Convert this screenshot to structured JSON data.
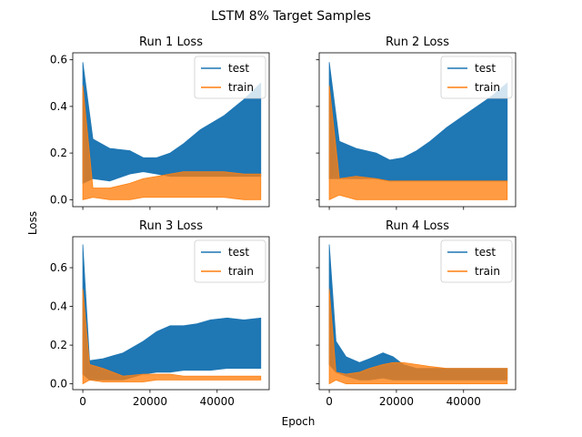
{
  "figure": {
    "title": "LSTM 8% Target Samples",
    "xlabel": "Epoch",
    "ylabel": "Loss"
  },
  "colors": {
    "test": "#1f77b4",
    "train": "#ff7f0e",
    "overlap": "#c98a4e"
  },
  "chart_data": [
    {
      "type": "line",
      "title": "Run 1 Loss",
      "xlim": [
        -3000,
        55500
      ],
      "ylim": [
        -0.03,
        0.63
      ],
      "xticks": [
        0,
        20000,
        40000
      ],
      "yticks": [
        0.0,
        0.2,
        0.4,
        0.6
      ],
      "show_xtick_labels": false,
      "show_ytick_labels": true,
      "legend": [
        "test",
        "train"
      ],
      "series": [
        {
          "name": "test",
          "x": [
            0,
            3000,
            8000,
            14000,
            18000,
            22000,
            26000,
            30000,
            35000,
            42000,
            48000,
            53000
          ],
          "upper": [
            0.59,
            0.26,
            0.22,
            0.21,
            0.18,
            0.18,
            0.2,
            0.24,
            0.3,
            0.36,
            0.43,
            0.5
          ],
          "lower": [
            0.07,
            0.09,
            0.08,
            0.11,
            0.12,
            0.11,
            0.1,
            0.1,
            0.1,
            0.1,
            0.1,
            0.1
          ]
        },
        {
          "name": "train",
          "x": [
            0,
            3000,
            8000,
            14000,
            18000,
            22000,
            26000,
            30000,
            35000,
            42000,
            48000,
            53000
          ],
          "upper": [
            0.49,
            0.05,
            0.05,
            0.07,
            0.09,
            0.1,
            0.11,
            0.12,
            0.12,
            0.12,
            0.11,
            0.11
          ],
          "lower": [
            0.0,
            0.01,
            0.0,
            0.0,
            0.01,
            0.01,
            0.01,
            0.01,
            0.01,
            0.01,
            0.0,
            0.0
          ]
        }
      ]
    },
    {
      "type": "line",
      "title": "Run 2 Loss",
      "xlim": [
        -3000,
        55500
      ],
      "ylim": [
        -0.03,
        0.63
      ],
      "xticks": [
        0,
        20000,
        40000
      ],
      "yticks": [
        0.0,
        0.2,
        0.4,
        0.6
      ],
      "show_xtick_labels": false,
      "show_ytick_labels": false,
      "legend": [
        "test",
        "train"
      ],
      "series": [
        {
          "name": "test",
          "x": [
            0,
            3000,
            8000,
            14000,
            18000,
            22000,
            26000,
            30000,
            35000,
            42000,
            48000,
            53000
          ],
          "upper": [
            0.59,
            0.25,
            0.22,
            0.2,
            0.17,
            0.18,
            0.21,
            0.25,
            0.31,
            0.38,
            0.44,
            0.5
          ],
          "lower": [
            0.09,
            0.09,
            0.09,
            0.09,
            0.08,
            0.08,
            0.08,
            0.08,
            0.08,
            0.08,
            0.08,
            0.08
          ]
        },
        {
          "name": "train",
          "x": [
            0,
            3000,
            8000,
            14000,
            18000,
            22000,
            26000,
            30000,
            35000,
            42000,
            48000,
            53000
          ],
          "upper": [
            0.49,
            0.09,
            0.1,
            0.09,
            0.08,
            0.08,
            0.08,
            0.08,
            0.08,
            0.08,
            0.08,
            0.08
          ],
          "lower": [
            0.0,
            0.02,
            0.0,
            0.0,
            0.0,
            0.0,
            0.0,
            0.0,
            0.0,
            0.0,
            0.0,
            0.0
          ]
        }
      ]
    },
    {
      "type": "line",
      "title": "Run 3 Loss",
      "xlim": [
        -3000,
        55500
      ],
      "ylim": [
        -0.03,
        0.76
      ],
      "xticks": [
        0,
        20000,
        40000
      ],
      "yticks": [
        0.0,
        0.2,
        0.4,
        0.6
      ],
      "show_xtick_labels": true,
      "show_ytick_labels": true,
      "legend": [
        "test",
        "train"
      ],
      "series": [
        {
          "name": "test",
          "x": [
            0,
            2000,
            6000,
            12000,
            18000,
            22000,
            26000,
            30000,
            34000,
            38000,
            43000,
            48000,
            53000
          ],
          "upper": [
            0.72,
            0.12,
            0.13,
            0.16,
            0.22,
            0.27,
            0.3,
            0.3,
            0.31,
            0.33,
            0.34,
            0.33,
            0.34
          ],
          "lower": [
            0.05,
            0.02,
            0.02,
            0.02,
            0.05,
            0.06,
            0.06,
            0.07,
            0.07,
            0.07,
            0.08,
            0.08,
            0.08
          ]
        },
        {
          "name": "train",
          "x": [
            0,
            2000,
            6000,
            12000,
            18000,
            22000,
            26000,
            30000,
            34000,
            38000,
            43000,
            48000,
            53000
          ],
          "upper": [
            0.49,
            0.1,
            0.08,
            0.04,
            0.05,
            0.05,
            0.05,
            0.04,
            0.04,
            0.04,
            0.04,
            0.04,
            0.04
          ],
          "lower": [
            0.0,
            0.02,
            0.01,
            0.01,
            0.01,
            0.02,
            0.02,
            0.02,
            0.02,
            0.02,
            0.02,
            0.02,
            0.02
          ]
        }
      ]
    },
    {
      "type": "line",
      "title": "Run 4 Loss",
      "xlim": [
        -3000,
        55500
      ],
      "ylim": [
        -0.03,
        0.76
      ],
      "xticks": [
        0,
        20000,
        40000
      ],
      "yticks": [
        0.0,
        0.2,
        0.4,
        0.6
      ],
      "show_xtick_labels": true,
      "show_ytick_labels": false,
      "legend": [
        "test",
        "train"
      ],
      "series": [
        {
          "name": "test",
          "x": [
            0,
            2000,
            5000,
            9000,
            12000,
            16000,
            19000,
            22000,
            26000,
            30000,
            35000,
            42000,
            48000,
            53000
          ],
          "upper": [
            0.72,
            0.22,
            0.14,
            0.11,
            0.13,
            0.16,
            0.14,
            0.1,
            0.08,
            0.08,
            0.08,
            0.08,
            0.08,
            0.08
          ],
          "lower": [
            0.1,
            0.06,
            0.04,
            0.02,
            0.02,
            0.03,
            0.02,
            0.02,
            0.02,
            0.02,
            0.02,
            0.02,
            0.02,
            0.02
          ]
        },
        {
          "name": "train",
          "x": [
            0,
            2000,
            5000,
            9000,
            12000,
            16000,
            19000,
            22000,
            26000,
            30000,
            35000,
            42000,
            48000,
            53000
          ],
          "upper": [
            0.49,
            0.06,
            0.05,
            0.06,
            0.08,
            0.1,
            0.11,
            0.11,
            0.1,
            0.09,
            0.08,
            0.08,
            0.08,
            0.08
          ],
          "lower": [
            0.0,
            0.02,
            0.0,
            0.0,
            0.0,
            0.0,
            0.0,
            0.0,
            0.0,
            0.0,
            0.0,
            0.0,
            0.0,
            0.0
          ]
        }
      ]
    }
  ]
}
